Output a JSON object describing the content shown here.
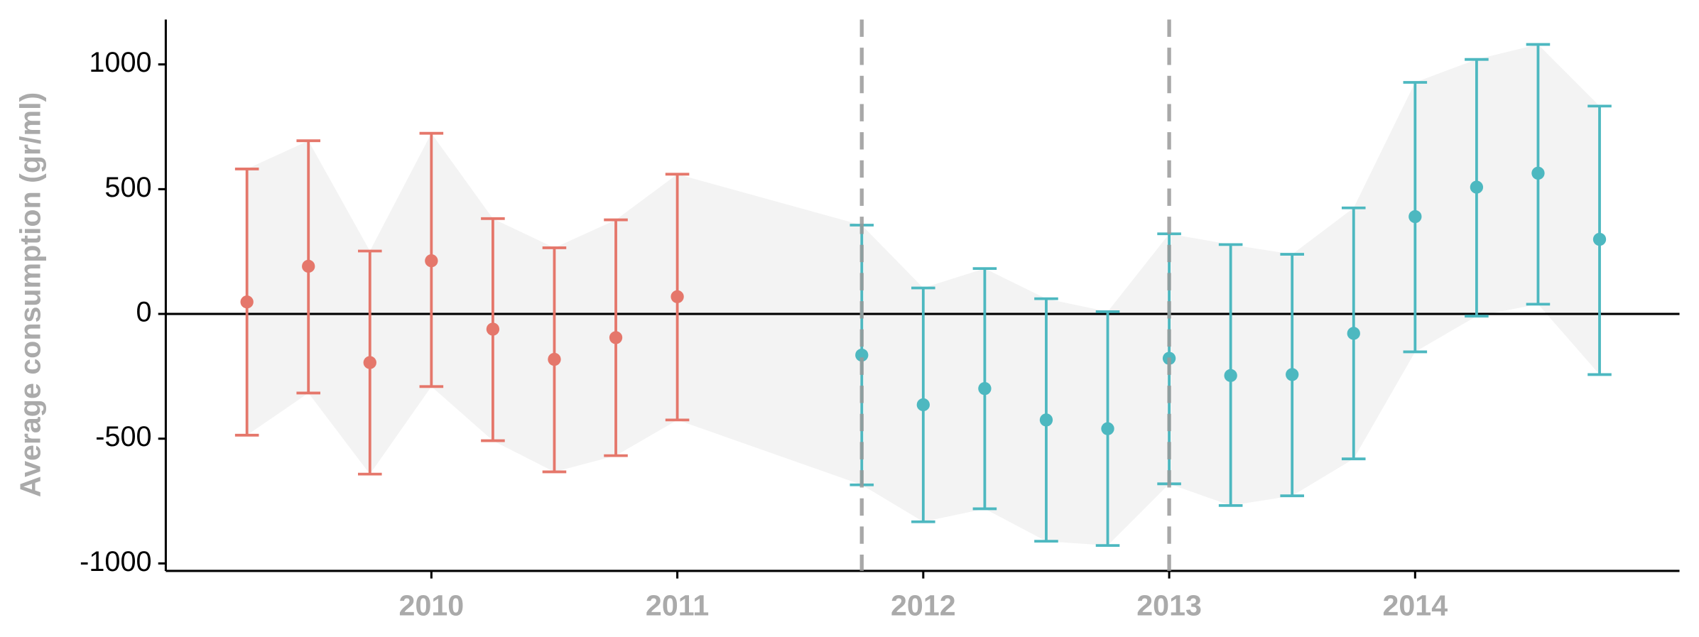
{
  "chart_data": {
    "type": "errorbar",
    "y_label": "Average consumption (gr/ml)",
    "xlim": [
      2008.92,
      2015.075
    ],
    "ylim": [
      -1030,
      1180
    ],
    "xticks": [
      2010,
      2011,
      2012,
      2013,
      2014
    ],
    "yticks": [
      -1000,
      -500,
      0,
      500,
      1000
    ],
    "hline": 0,
    "vlines": [
      2011.75,
      2013
    ],
    "vline_color": "#999999",
    "ribbon_color": "#f3f3f3",
    "series": [
      {
        "color": "#e5776b",
        "x": [
          2009.25,
          2009.5,
          2009.75,
          2010,
          2010.25,
          2010.5,
          2010.75,
          2011
        ],
        "values": [
          48,
          191,
          -195,
          213,
          -61,
          -182,
          -95,
          69
        ],
        "lower": [
          -486,
          -317,
          -642,
          -291,
          -508,
          -633,
          -568,
          -425
        ],
        "upper": [
          581,
          694,
          252,
          724,
          382,
          265,
          377,
          560
        ]
      },
      {
        "color": "#4db8c0",
        "x": [
          2011.75,
          2012,
          2012.25,
          2012.5,
          2012.75,
          2013,
          2013.25,
          2013.5,
          2013.75,
          2014,
          2014.25,
          2014.5,
          2014.75
        ],
        "values": [
          -165,
          -364,
          -299,
          -425,
          -460,
          -178,
          -247,
          -243,
          -78,
          390,
          508,
          564,
          299
        ],
        "lower": [
          -685,
          -833,
          -781,
          -911,
          -928,
          -681,
          -768,
          -729,
          -581,
          -152,
          -9,
          39,
          -243
        ],
        "upper": [
          356,
          104,
          182,
          61,
          9,
          321,
          278,
          239,
          425,
          928,
          1020,
          1080,
          833
        ]
      }
    ]
  }
}
